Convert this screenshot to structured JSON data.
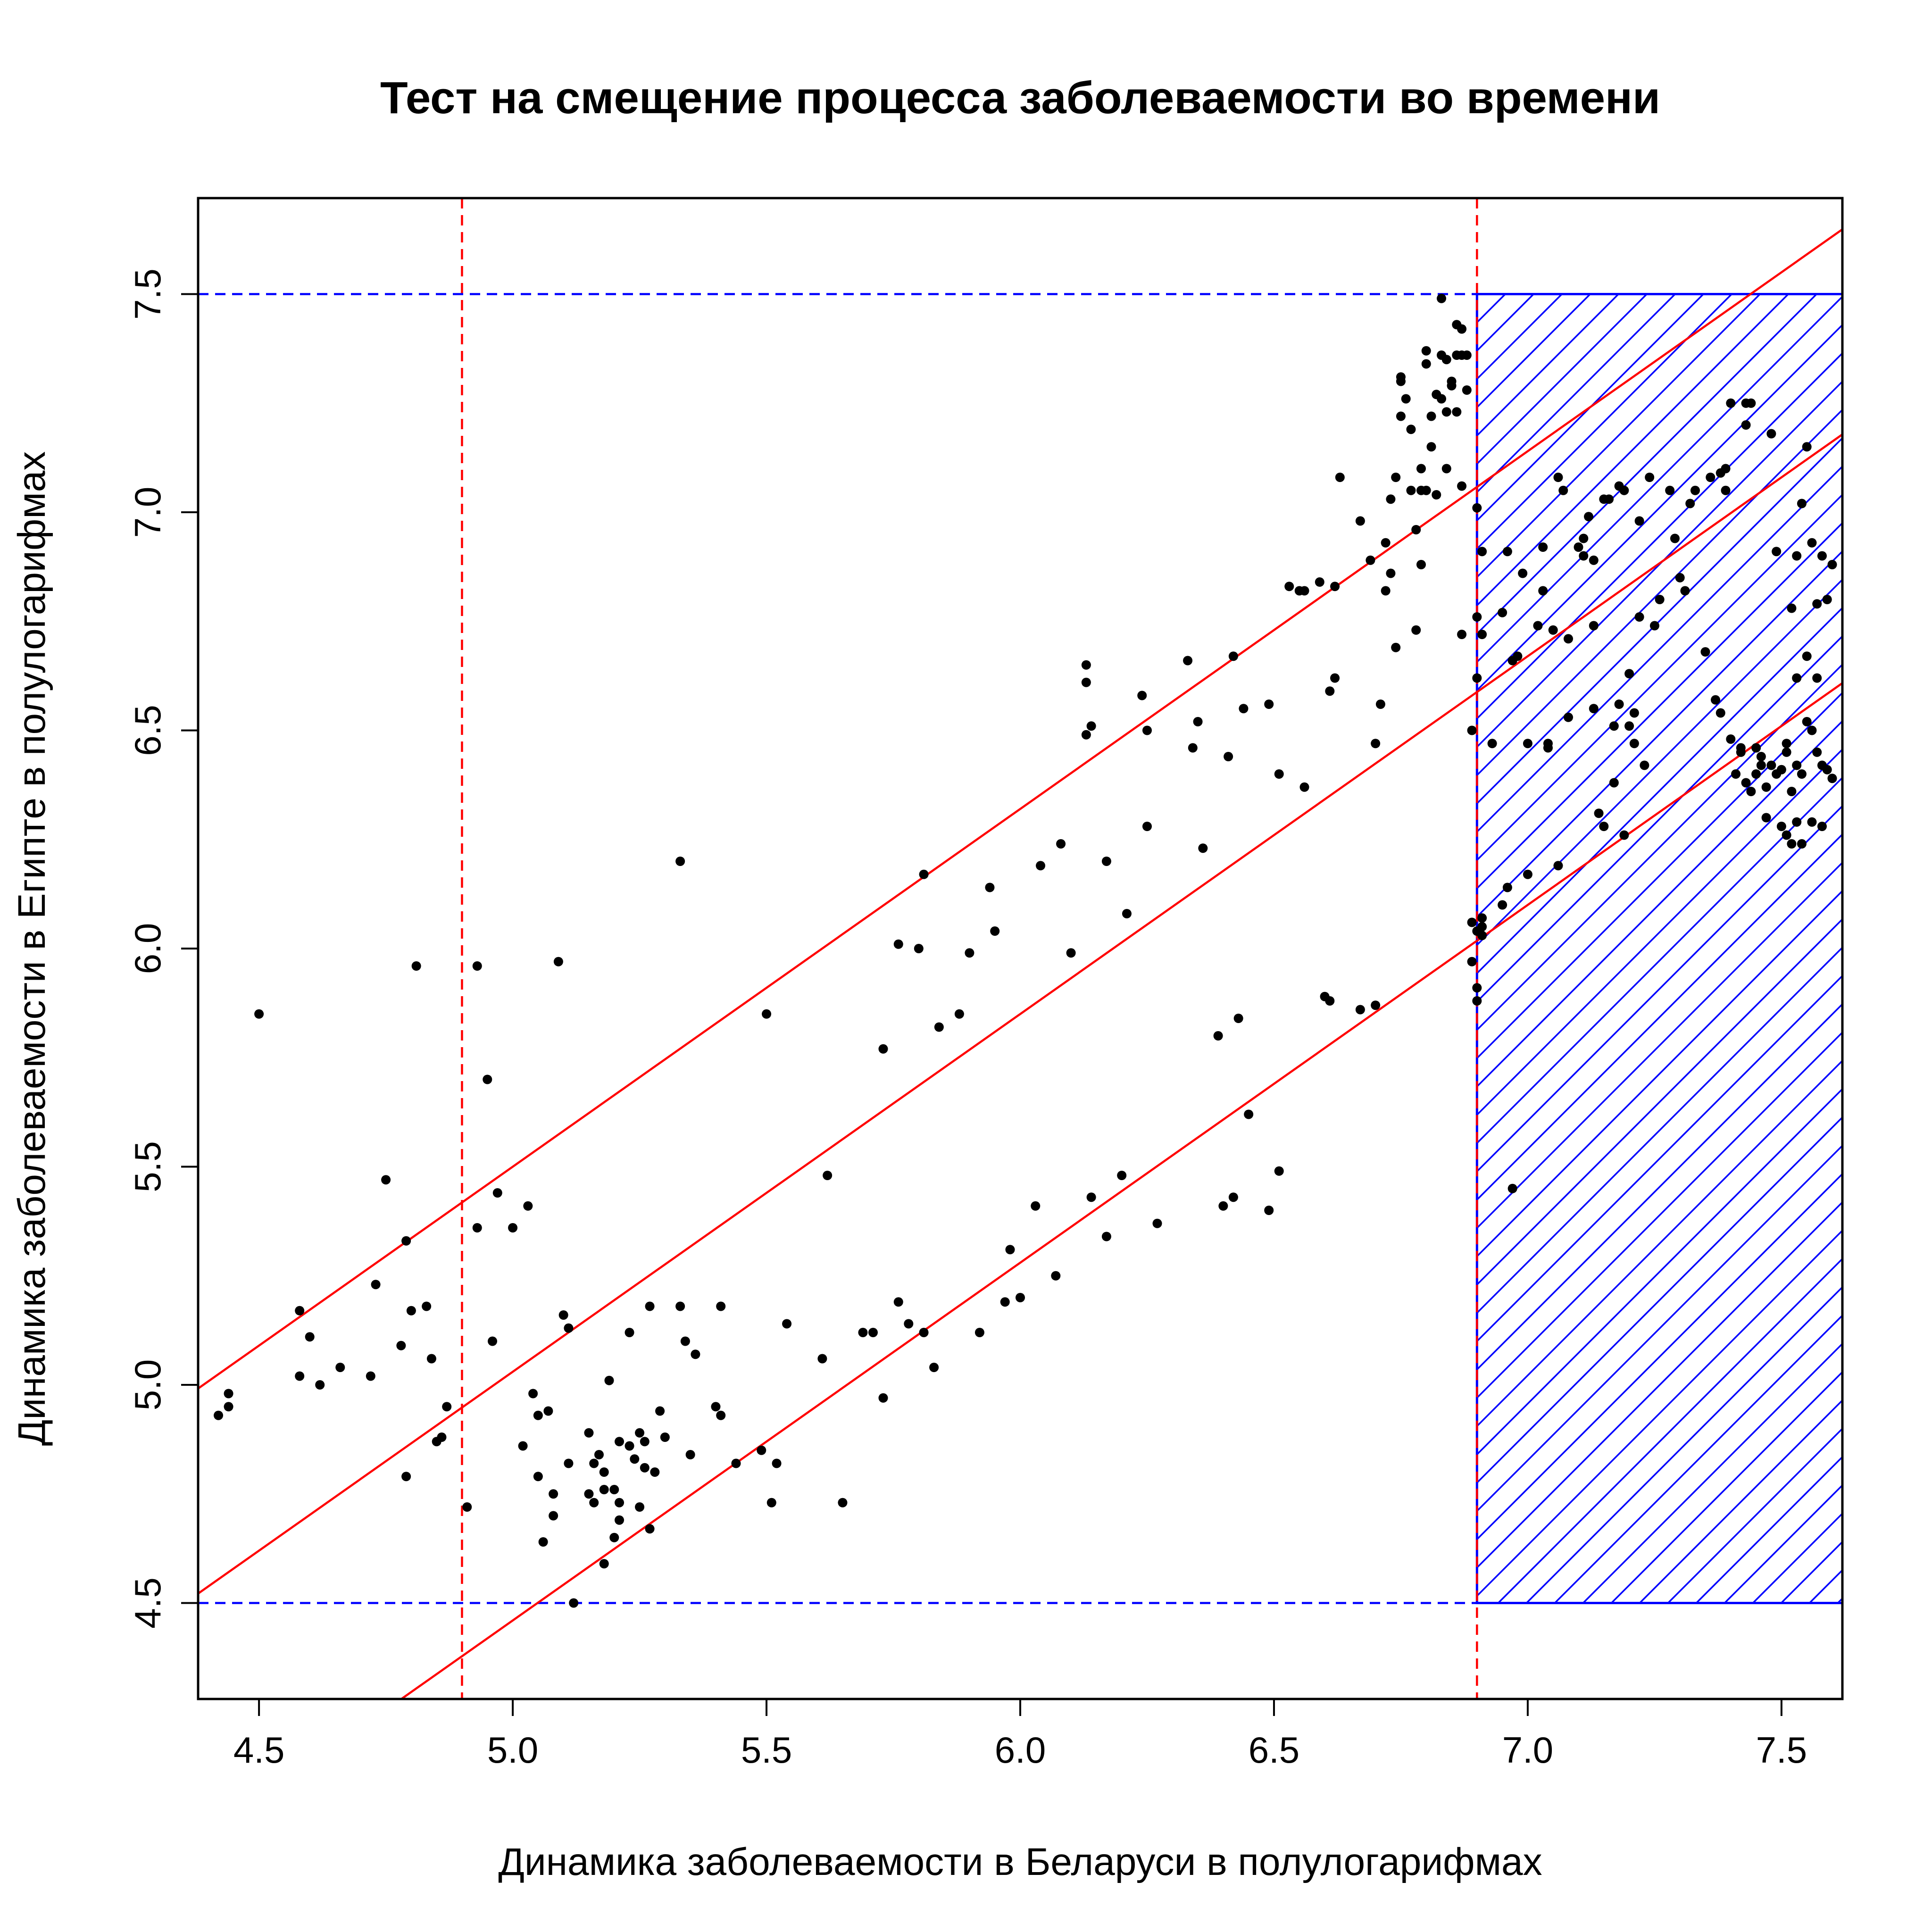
{
  "chart_data": {
    "type": "scatter",
    "title": "Тест на смещение процесса заболеваемости во времени",
    "xlabel": "Динамика заболеваемости в Беларуси в полулогарифмах",
    "ylabel": "Динамика заболеваемости в Египте в полулогарифмах",
    "xlim": [
      4.38,
      7.62
    ],
    "ylim": [
      4.28,
      7.72
    ],
    "xticks": [
      "4.5",
      "5.0",
      "5.5",
      "6.0",
      "6.5",
      "7.0",
      "7.5"
    ],
    "yticks": [
      "4.5",
      "5.0",
      "5.5",
      "6.0",
      "6.5",
      "7.0",
      "7.5"
    ],
    "grid": false,
    "legend": "none",
    "colors": {
      "points": "#000000",
      "regression": "#ff0000",
      "bounds": "#0000ff",
      "hatch": "#0000ff"
    },
    "vertical_reference_lines": [
      4.9,
      6.9
    ],
    "horizontal_reference_lines": [
      4.5,
      7.5
    ],
    "hatched_region": {
      "x_from": 6.9,
      "x_to": 7.62,
      "y_from": 4.5,
      "y_to": 7.5
    },
    "regression_lines": [
      {
        "slope": 0.82,
        "intercept": 1.4
      },
      {
        "slope": 0.82,
        "intercept": 0.93
      },
      {
        "slope": 0.82,
        "intercept": 0.36
      }
    ],
    "points": [
      [
        4.42,
        4.93
      ],
      [
        4.44,
        4.98
      ],
      [
        4.44,
        4.95
      ],
      [
        4.5,
        5.85
      ],
      [
        4.58,
        5.17
      ],
      [
        4.58,
        5.02
      ],
      [
        4.6,
        5.11
      ],
      [
        4.62,
        5.0
      ],
      [
        4.66,
        5.04
      ],
      [
        4.72,
        5.02
      ],
      [
        4.73,
        5.23
      ],
      [
        4.75,
        5.47
      ],
      [
        4.78,
        5.09
      ],
      [
        4.79,
        5.33
      ],
      [
        4.79,
        4.79
      ],
      [
        4.8,
        5.17
      ],
      [
        4.81,
        5.96
      ],
      [
        4.83,
        5.18
      ],
      [
        4.84,
        5.06
      ],
      [
        4.85,
        4.87
      ],
      [
        4.86,
        4.88
      ],
      [
        4.87,
        4.95
      ],
      [
        4.91,
        4.72
      ],
      [
        4.93,
        5.96
      ],
      [
        4.93,
        5.36
      ],
      [
        4.95,
        5.7
      ],
      [
        4.96,
        5.1
      ],
      [
        4.97,
        5.44
      ],
      [
        5.0,
        5.36
      ],
      [
        5.02,
        4.86
      ],
      [
        5.03,
        5.41
      ],
      [
        5.04,
        4.98
      ],
      [
        5.05,
        4.79
      ],
      [
        5.05,
        4.93
      ],
      [
        5.06,
        4.64
      ],
      [
        5.07,
        4.94
      ],
      [
        5.08,
        4.75
      ],
      [
        5.08,
        4.7
      ],
      [
        5.09,
        5.97
      ],
      [
        5.1,
        5.16
      ],
      [
        5.11,
        5.13
      ],
      [
        5.11,
        4.82
      ],
      [
        5.12,
        4.5
      ],
      [
        5.15,
        4.75
      ],
      [
        5.15,
        4.89
      ],
      [
        5.16,
        4.82
      ],
      [
        5.16,
        4.73
      ],
      [
        5.17,
        4.84
      ],
      [
        5.18,
        4.8
      ],
      [
        5.18,
        4.76
      ],
      [
        5.18,
        4.59
      ],
      [
        5.19,
        5.01
      ],
      [
        5.2,
        4.76
      ],
      [
        5.2,
        4.65
      ],
      [
        5.21,
        4.87
      ],
      [
        5.21,
        4.73
      ],
      [
        5.21,
        4.69
      ],
      [
        5.23,
        4.86
      ],
      [
        5.23,
        5.12
      ],
      [
        5.24,
        4.83
      ],
      [
        5.25,
        4.89
      ],
      [
        5.25,
        4.72
      ],
      [
        5.26,
        4.81
      ],
      [
        5.26,
        4.87
      ],
      [
        5.27,
        5.18
      ],
      [
        5.27,
        4.67
      ],
      [
        5.28,
        4.8
      ],
      [
        5.29,
        4.94
      ],
      [
        5.3,
        4.88
      ],
      [
        5.33,
        6.2
      ],
      [
        5.33,
        5.18
      ],
      [
        5.34,
        5.1
      ],
      [
        5.35,
        4.84
      ],
      [
        5.36,
        5.07
      ],
      [
        5.4,
        4.95
      ],
      [
        5.41,
        5.18
      ],
      [
        5.41,
        4.93
      ],
      [
        5.44,
        4.82
      ],
      [
        5.49,
        4.85
      ],
      [
        5.5,
        5.85
      ],
      [
        5.51,
        4.73
      ],
      [
        5.52,
        4.82
      ],
      [
        5.54,
        5.14
      ],
      [
        5.61,
        5.06
      ],
      [
        5.62,
        5.48
      ],
      [
        5.65,
        4.73
      ],
      [
        5.69,
        5.12
      ],
      [
        5.71,
        5.12
      ],
      [
        5.73,
        5.77
      ],
      [
        5.73,
        4.97
      ],
      [
        5.76,
        6.01
      ],
      [
        5.76,
        5.19
      ],
      [
        5.78,
        5.14
      ],
      [
        5.8,
        6.0
      ],
      [
        5.81,
        6.17
      ],
      [
        5.81,
        5.12
      ],
      [
        5.83,
        5.04
      ],
      [
        5.84,
        5.82
      ],
      [
        5.88,
        5.85
      ],
      [
        5.9,
        5.99
      ],
      [
        5.92,
        5.12
      ],
      [
        5.94,
        6.14
      ],
      [
        5.95,
        6.04
      ],
      [
        5.97,
        5.19
      ],
      [
        5.98,
        5.31
      ],
      [
        6.0,
        5.2
      ],
      [
        6.03,
        5.41
      ],
      [
        6.04,
        6.19
      ],
      [
        6.07,
        5.25
      ],
      [
        6.08,
        6.24
      ],
      [
        6.1,
        5.99
      ],
      [
        6.13,
        6.61
      ],
      [
        6.13,
        6.49
      ],
      [
        6.13,
        6.65
      ],
      [
        6.14,
        6.51
      ],
      [
        6.14,
        5.43
      ],
      [
        6.17,
        6.2
      ],
      [
        6.17,
        5.34
      ],
      [
        6.2,
        5.48
      ],
      [
        6.21,
        6.08
      ],
      [
        6.24,
        6.58
      ],
      [
        6.25,
        6.5
      ],
      [
        6.25,
        6.28
      ],
      [
        6.27,
        5.37
      ],
      [
        6.33,
        6.66
      ],
      [
        6.34,
        6.46
      ],
      [
        6.35,
        6.52
      ],
      [
        6.36,
        6.23
      ],
      [
        6.39,
        5.8
      ],
      [
        6.4,
        5.41
      ],
      [
        6.41,
        6.44
      ],
      [
        6.42,
        6.67
      ],
      [
        6.42,
        5.43
      ],
      [
        6.43,
        5.84
      ],
      [
        6.44,
        6.55
      ],
      [
        6.45,
        5.62
      ],
      [
        6.49,
        6.56
      ],
      [
        6.49,
        5.4
      ],
      [
        6.51,
        6.4
      ],
      [
        6.51,
        5.49
      ],
      [
        6.53,
        6.83
      ],
      [
        6.55,
        6.82
      ],
      [
        6.56,
        6.37
      ],
      [
        6.56,
        6.82
      ],
      [
        6.59,
        6.84
      ],
      [
        6.6,
        5.89
      ],
      [
        6.61,
        6.59
      ],
      [
        6.61,
        5.88
      ],
      [
        6.62,
        6.83
      ],
      [
        6.62,
        6.62
      ],
      [
        6.63,
        7.08
      ],
      [
        6.67,
        6.98
      ],
      [
        6.67,
        5.86
      ],
      [
        6.69,
        6.89
      ],
      [
        6.7,
        6.47
      ],
      [
        6.7,
        5.87
      ],
      [
        6.71,
        6.56
      ],
      [
        6.72,
        6.93
      ],
      [
        6.72,
        6.82
      ],
      [
        6.73,
        6.86
      ],
      [
        6.73,
        7.03
      ],
      [
        6.74,
        7.08
      ],
      [
        6.74,
        6.69
      ],
      [
        6.75,
        7.31
      ],
      [
        6.75,
        7.3
      ],
      [
        6.75,
        7.22
      ],
      [
        6.76,
        7.26
      ],
      [
        6.77,
        7.19
      ],
      [
        6.77,
        7.05
      ],
      [
        6.78,
        6.73
      ],
      [
        6.78,
        6.96
      ],
      [
        6.79,
        7.1
      ],
      [
        6.79,
        7.05
      ],
      [
        6.79,
        6.88
      ],
      [
        6.8,
        7.37
      ],
      [
        6.8,
        7.34
      ],
      [
        6.8,
        7.05
      ],
      [
        6.81,
        7.22
      ],
      [
        6.81,
        7.15
      ],
      [
        6.82,
        7.27
      ],
      [
        6.82,
        7.04
      ],
      [
        6.83,
        7.49
      ],
      [
        6.83,
        7.36
      ],
      [
        6.83,
        7.26
      ],
      [
        6.84,
        7.35
      ],
      [
        6.84,
        7.23
      ],
      [
        6.84,
        7.1
      ],
      [
        6.85,
        7.3
      ],
      [
        6.85,
        7.29
      ],
      [
        6.86,
        7.36
      ],
      [
        6.86,
        7.43
      ],
      [
        6.86,
        7.23
      ],
      [
        6.87,
        7.42
      ],
      [
        6.87,
        7.36
      ],
      [
        6.87,
        7.06
      ],
      [
        6.87,
        6.72
      ],
      [
        6.88,
        7.36
      ],
      [
        6.88,
        7.28
      ],
      [
        6.89,
        6.5
      ],
      [
        6.89,
        6.06
      ],
      [
        6.89,
        5.97
      ],
      [
        6.9,
        7.01
      ],
      [
        6.9,
        6.76
      ],
      [
        6.9,
        6.62
      ],
      [
        6.9,
        6.04
      ],
      [
        6.9,
        5.88
      ],
      [
        6.9,
        5.91
      ],
      [
        6.91,
        6.91
      ],
      [
        6.91,
        6.72
      ],
      [
        6.91,
        6.07
      ],
      [
        6.91,
        6.05
      ],
      [
        6.91,
        6.03
      ],
      [
        6.93,
        6.47
      ],
      [
        6.95,
        6.1
      ],
      [
        6.95,
        6.77
      ],
      [
        6.96,
        6.91
      ],
      [
        6.96,
        6.14
      ],
      [
        6.97,
        6.66
      ],
      [
        6.97,
        5.45
      ],
      [
        6.98,
        6.67
      ],
      [
        6.99,
        6.86
      ],
      [
        7.0,
        6.17
      ],
      [
        7.0,
        6.47
      ],
      [
        7.02,
        6.74
      ],
      [
        7.03,
        6.92
      ],
      [
        7.03,
        6.82
      ],
      [
        7.04,
        6.47
      ],
      [
        7.04,
        6.46
      ],
      [
        7.05,
        6.73
      ],
      [
        7.06,
        7.08
      ],
      [
        7.06,
        6.19
      ],
      [
        7.07,
        7.05
      ],
      [
        7.08,
        6.71
      ],
      [
        7.08,
        6.53
      ],
      [
        7.1,
        6.92
      ],
      [
        7.11,
        6.94
      ],
      [
        7.11,
        6.9
      ],
      [
        7.12,
        6.99
      ],
      [
        7.13,
        6.89
      ],
      [
        7.13,
        6.74
      ],
      [
        7.13,
        6.55
      ],
      [
        7.14,
        6.31
      ],
      [
        7.15,
        7.03
      ],
      [
        7.15,
        6.28
      ],
      [
        7.16,
        7.03
      ],
      [
        7.17,
        6.51
      ],
      [
        7.17,
        6.38
      ],
      [
        7.18,
        7.06
      ],
      [
        7.18,
        6.56
      ],
      [
        7.19,
        7.05
      ],
      [
        7.19,
        6.26
      ],
      [
        7.2,
        6.63
      ],
      [
        7.2,
        6.51
      ],
      [
        7.21,
        6.47
      ],
      [
        7.21,
        6.54
      ],
      [
        7.22,
        6.98
      ],
      [
        7.22,
        6.76
      ],
      [
        7.23,
        6.42
      ],
      [
        7.24,
        7.08
      ],
      [
        7.25,
        6.74
      ],
      [
        7.26,
        6.8
      ],
      [
        7.28,
        7.05
      ],
      [
        7.29,
        6.94
      ],
      [
        7.3,
        6.85
      ],
      [
        7.31,
        6.82
      ],
      [
        7.32,
        7.02
      ],
      [
        7.33,
        7.05
      ],
      [
        7.35,
        6.68
      ],
      [
        7.36,
        7.08
      ],
      [
        7.37,
        6.57
      ],
      [
        7.38,
        7.09
      ],
      [
        7.38,
        6.54
      ],
      [
        7.39,
        7.05
      ],
      [
        7.39,
        7.1
      ],
      [
        7.4,
        7.25
      ],
      [
        7.4,
        6.48
      ],
      [
        7.41,
        6.4
      ],
      [
        7.42,
        6.46
      ],
      [
        7.42,
        6.45
      ],
      [
        7.43,
        7.25
      ],
      [
        7.43,
        7.2
      ],
      [
        7.43,
        6.38
      ],
      [
        7.44,
        7.25
      ],
      [
        7.44,
        6.36
      ],
      [
        7.45,
        6.4
      ],
      [
        7.45,
        6.46
      ],
      [
        7.46,
        6.42
      ],
      [
        7.46,
        6.44
      ],
      [
        7.47,
        6.37
      ],
      [
        7.47,
        6.3
      ],
      [
        7.48,
        7.18
      ],
      [
        7.48,
        6.42
      ],
      [
        7.49,
        6.91
      ],
      [
        7.49,
        6.4
      ],
      [
        7.5,
        6.41
      ],
      [
        7.5,
        6.28
      ],
      [
        7.51,
        6.47
      ],
      [
        7.51,
        6.45
      ],
      [
        7.51,
        6.26
      ],
      [
        7.52,
        6.78
      ],
      [
        7.52,
        6.36
      ],
      [
        7.52,
        6.24
      ],
      [
        7.53,
        6.9
      ],
      [
        7.53,
        6.62
      ],
      [
        7.53,
        6.42
      ],
      [
        7.53,
        6.29
      ],
      [
        7.54,
        7.02
      ],
      [
        7.54,
        6.4
      ],
      [
        7.54,
        6.24
      ],
      [
        7.55,
        7.15
      ],
      [
        7.55,
        6.67
      ],
      [
        7.55,
        6.52
      ],
      [
        7.56,
        6.93
      ],
      [
        7.56,
        6.5
      ],
      [
        7.56,
        6.29
      ],
      [
        7.57,
        6.79
      ],
      [
        7.57,
        6.62
      ],
      [
        7.57,
        6.45
      ],
      [
        7.58,
        6.9
      ],
      [
        7.58,
        6.42
      ],
      [
        7.58,
        6.28
      ],
      [
        7.59,
        6.8
      ],
      [
        7.59,
        6.41
      ],
      [
        7.6,
        6.88
      ],
      [
        7.6,
        6.39
      ]
    ]
  }
}
